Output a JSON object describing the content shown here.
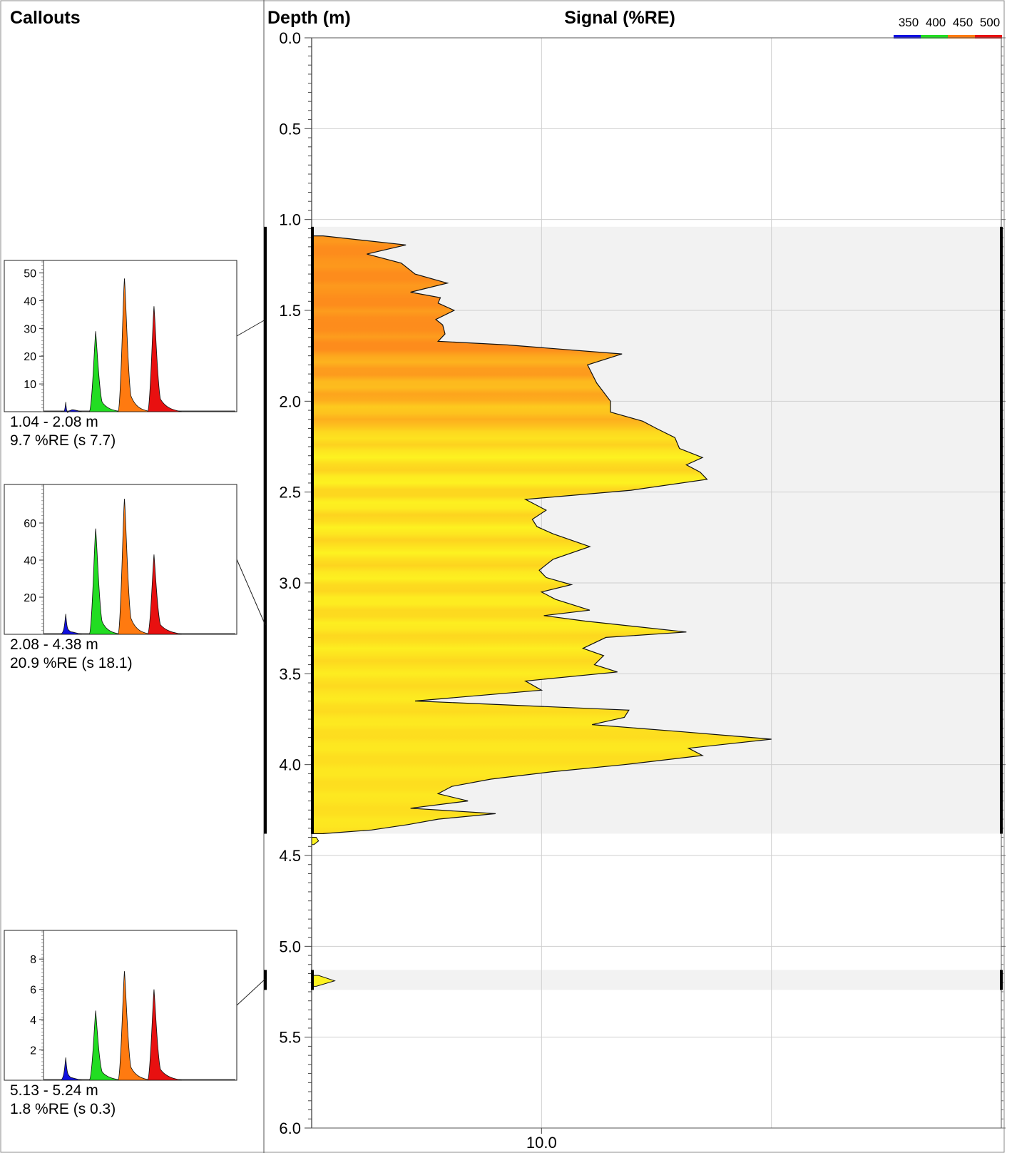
{
  "headers": {
    "callouts": "Callouts",
    "depth": "Depth (m)",
    "signal": "Signal (%RE)"
  },
  "legend": {
    "wavelengths": [
      {
        "label": "350",
        "color": "#1010e0"
      },
      {
        "label": "400",
        "color": "#22dd22"
      },
      {
        "label": "450",
        "color": "#ff7a10"
      },
      {
        "label": "500",
        "color": "#e81010"
      }
    ]
  },
  "colors": {
    "fill_orange": "#f59a1c",
    "fill_yellow": "#fdf220",
    "interval_band": "#f2f2f2",
    "grid": "#cfcfcf"
  },
  "chart_data": [
    {
      "type": "area",
      "title": "Signal (%RE)",
      "ylabel": "Depth (m)",
      "xlabel": "",
      "orientation": "vertical-depth",
      "ylim": [
        0,
        6
      ],
      "xlim": [
        0,
        30
      ],
      "y_ticks": [
        "0.0",
        "0.5",
        "1.0",
        "1.5",
        "2.0",
        "2.5",
        "3.0",
        "3.5",
        "4.0",
        "4.5",
        "5.0",
        "5.5",
        "6.0"
      ],
      "x_tick_labels": [
        {
          "value": 10,
          "label": "10.0"
        }
      ],
      "grid": true,
      "intervals": [
        [
          1.04,
          4.38
        ],
        [
          5.13,
          5.24
        ]
      ],
      "series": [
        {
          "depth": [
            1.09,
            1.14,
            1.19,
            1.24,
            1.3,
            1.35,
            1.4,
            1.43,
            1.46,
            1.5,
            1.55,
            1.58,
            1.63,
            1.67,
            1.69,
            1.74,
            1.8,
            1.9,
            2.0,
            2.06,
            2.11,
            2.15,
            2.2,
            2.26,
            2.31,
            2.35,
            2.39,
            2.43,
            2.49,
            2.54,
            2.6,
            2.65,
            2.69,
            2.73,
            2.8,
            2.87,
            2.93,
            2.97,
            3.01,
            3.05,
            3.09,
            3.15,
            3.18,
            3.21,
            3.27,
            3.3,
            3.36,
            3.4,
            3.45,
            3.49,
            3.54,
            3.59,
            3.65,
            3.7,
            3.74,
            3.78,
            3.82,
            3.86,
            3.91,
            3.95,
            4.0,
            4.04,
            4.08,
            4.12,
            4.16,
            4.2,
            4.24,
            4.27,
            4.3,
            4.33,
            4.36,
            4.38
          ],
          "signal": [
            0.5,
            4.1,
            2.4,
            3.9,
            4.5,
            5.9,
            4.3,
            5.6,
            5.5,
            6.2,
            5.4,
            5.7,
            5.8,
            5.5,
            8.5,
            13.5,
            12.0,
            12.4,
            13.0,
            13.0,
            14.4,
            15.0,
            15.8,
            16.0,
            17.0,
            16.3,
            16.9,
            17.2,
            13.9,
            9.3,
            10.2,
            9.6,
            9.8,
            10.5,
            12.1,
            10.5,
            9.9,
            10.2,
            11.3,
            10.0,
            10.6,
            12.1,
            10.1,
            11.9,
            16.3,
            12.8,
            11.8,
            12.7,
            12.3,
            13.3,
            9.3,
            10.0,
            4.5,
            13.8,
            13.6,
            12.2,
            16.2,
            20.0,
            16.4,
            17.0,
            13.6,
            10.4,
            7.8,
            6.1,
            5.5,
            6.8,
            4.3,
            8.0,
            5.5,
            4.2,
            2.6,
            0.5
          ]
        }
      ],
      "minor_traces": [
        {
          "depth": [
            4.4,
            4.42,
            4.44
          ],
          "signal": [
            0.2,
            0.3,
            0.1
          ]
        },
        {
          "depth": [
            5.16,
            5.19,
            5.22
          ],
          "signal": [
            0.3,
            1.0,
            0.2
          ]
        }
      ]
    },
    {
      "type": "area",
      "callout": true,
      "range_label": "1.04 - 2.08 m",
      "stat_label": "9.7 %RE (s 7.7)",
      "yticks": [
        10,
        20,
        30,
        40,
        50
      ],
      "ylim": [
        0,
        54
      ],
      "peaks": [
        {
          "name": "350",
          "height": 3.5
        },
        {
          "name": "400",
          "height": 29
        },
        {
          "name": "450",
          "height": 48
        },
        {
          "name": "500",
          "height": 38
        }
      ]
    },
    {
      "type": "area",
      "callout": true,
      "range_label": "2.08 - 4.38 m",
      "stat_label": "20.9 %RE (s 18.1)",
      "yticks": [
        20,
        40,
        60
      ],
      "ylim": [
        0,
        80
      ],
      "peaks": [
        {
          "name": "350",
          "height": 11
        },
        {
          "name": "400",
          "height": 57
        },
        {
          "name": "450",
          "height": 73
        },
        {
          "name": "500",
          "height": 43
        }
      ]
    },
    {
      "type": "area",
      "callout": true,
      "range_label": "5.13 - 5.24 m",
      "stat_label": "1.8 %RE (s 0.3)",
      "yticks": [
        2,
        4,
        6,
        8
      ],
      "ylim": [
        0,
        9.8
      ],
      "peaks": [
        {
          "name": "350",
          "height": 1.5
        },
        {
          "name": "400",
          "height": 4.6
        },
        {
          "name": "450",
          "height": 7.2
        },
        {
          "name": "500",
          "height": 6.0
        }
      ]
    }
  ]
}
